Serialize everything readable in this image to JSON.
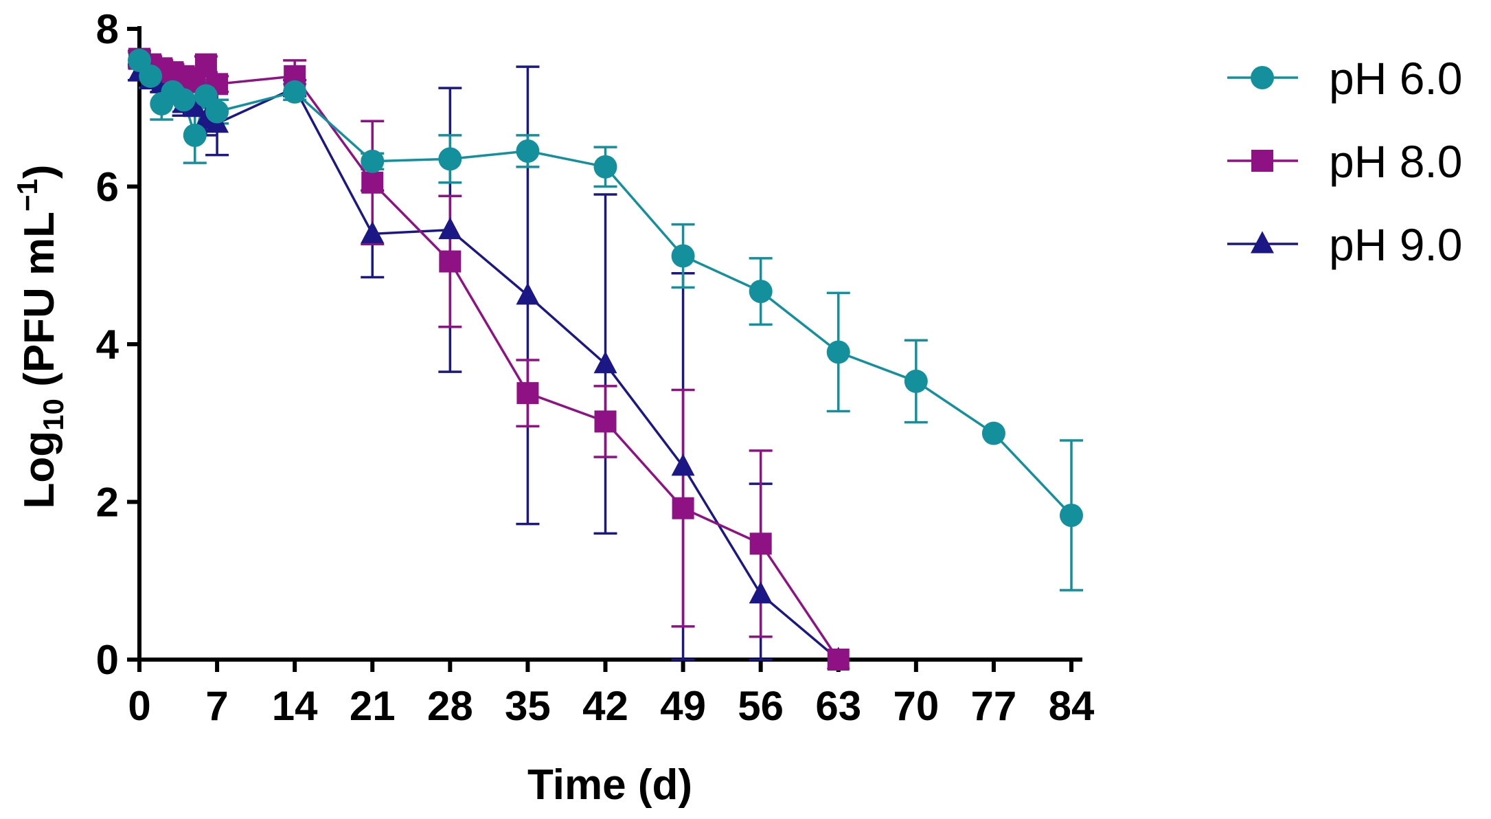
{
  "chart_data": {
    "type": "line",
    "title": "",
    "xlabel": "Time (d)",
    "ylabel_parts": {
      "pre": "Log",
      "sub": "10",
      "mid": " (PFU mL",
      "sup": "−1",
      "post": ")"
    },
    "xlim": [
      0,
      85
    ],
    "ylim": [
      0,
      8
    ],
    "x_ticks": [
      0,
      7,
      14,
      21,
      28,
      35,
      42,
      49,
      56,
      63,
      70,
      77,
      84
    ],
    "y_ticks": [
      0,
      2,
      4,
      6,
      8
    ],
    "legend_position": "top-right",
    "series": [
      {
        "name": "pH 6.0",
        "color": "#13909B",
        "marker": "circle",
        "x": [
          0,
          1,
          2,
          3,
          4,
          5,
          6,
          7,
          14,
          21,
          28,
          35,
          42,
          49,
          56,
          63,
          70,
          77,
          84
        ],
        "y": [
          7.6,
          7.4,
          7.05,
          7.2,
          7.1,
          6.65,
          7.15,
          6.95,
          7.2,
          6.32,
          6.35,
          6.45,
          6.25,
          5.12,
          4.67,
          3.9,
          3.53,
          2.87,
          1.83
        ],
        "err": [
          0.1,
          0.15,
          0.2,
          0.15,
          0.15,
          0.35,
          0.2,
          0.15,
          0.1,
          0.1,
          0.3,
          0.2,
          0.25,
          0.4,
          0.42,
          0.75,
          0.52,
          0.0,
          0.95
        ]
      },
      {
        "name": "pH 8.0",
        "color": "#8E1283",
        "marker": "square",
        "x": [
          0,
          1,
          2,
          3,
          4,
          5,
          6,
          7,
          14,
          21,
          28,
          35,
          42,
          49,
          56,
          63
        ],
        "y": [
          7.62,
          7.55,
          7.5,
          7.45,
          7.4,
          7.35,
          7.55,
          7.3,
          7.4,
          6.05,
          5.05,
          3.38,
          3.02,
          1.92,
          1.47,
          0.0
        ],
        "err": [
          0.1,
          0.1,
          0.1,
          0.1,
          0.1,
          0.15,
          0.1,
          0.1,
          0.2,
          0.78,
          0.83,
          0.42,
          0.45,
          1.5,
          1.18,
          0.0
        ]
      },
      {
        "name": "pH 9.0",
        "color": "#1B1885",
        "marker": "triangle",
        "x": [
          0,
          1,
          2,
          3,
          4,
          5,
          6,
          7,
          14,
          21,
          28,
          35,
          42,
          49,
          56,
          63
        ],
        "y": [
          7.45,
          7.35,
          7.3,
          7.2,
          7.05,
          7.0,
          6.85,
          6.8,
          7.25,
          5.4,
          5.45,
          4.62,
          3.75,
          2.45,
          0.83,
          0.0
        ],
        "err": [
          0.1,
          0.1,
          0.1,
          0.1,
          0.15,
          0.1,
          0.2,
          0.4,
          0.1,
          0.55,
          1.8,
          2.9,
          2.15,
          2.45,
          1.4,
          0.0
        ]
      }
    ]
  }
}
